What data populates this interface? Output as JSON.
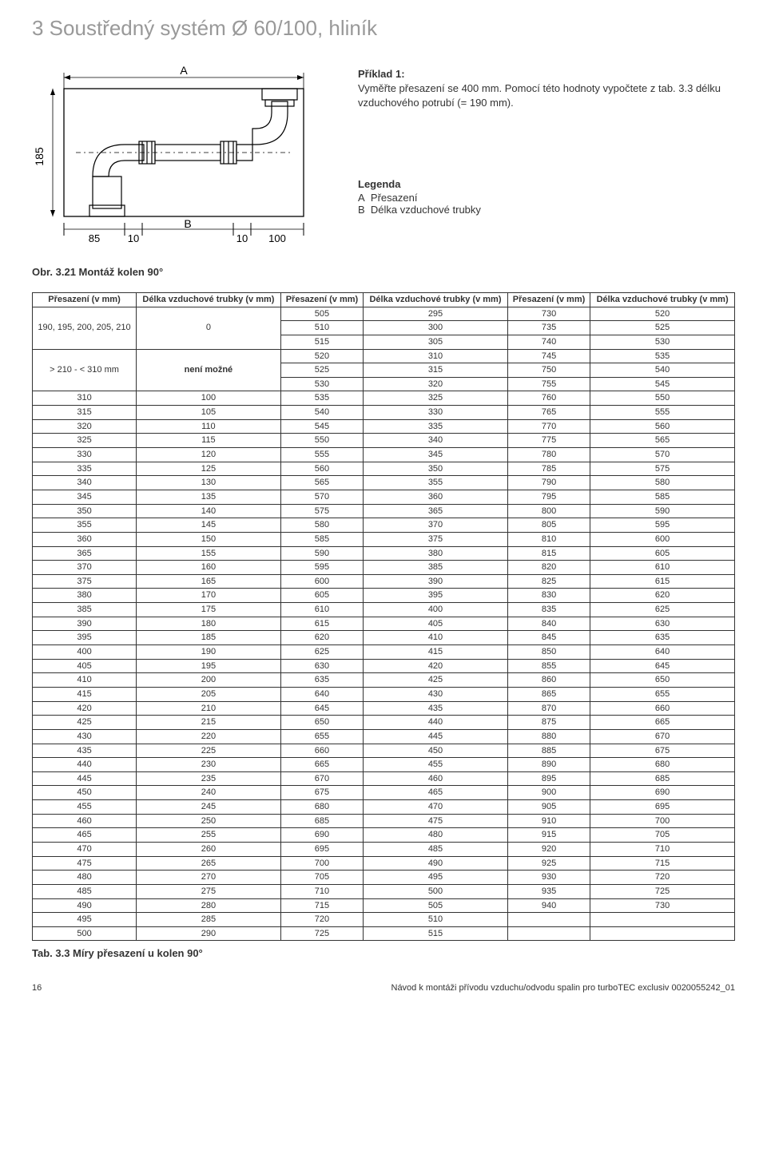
{
  "section_title": "3 Soustředný systém Ø 60/100, hliník",
  "example": {
    "title": "Příklad 1:",
    "text": "Vyměřte přesazení se 400 mm. Pomocí této hodnoty vypočtete z tab. 3.3 délku vzduchového potrubí (= 190 mm)."
  },
  "legend": {
    "title": "Legenda",
    "a_label": "A",
    "a_text": "Přesazení",
    "b_label": "B",
    "b_text": "Délka vzduchové trubky"
  },
  "fig_caption": "Obr. 3.21 Montáž kolen 90°",
  "diagram": {
    "dim_A": "A",
    "dim_B": "B",
    "d85": "85",
    "d100": "100",
    "d10a": "10",
    "d10b": "10",
    "d185": "185"
  },
  "table": {
    "header": {
      "col1": "Přesazení (v mm)",
      "col2": "Délka vzduchové trubky (v mm)",
      "col3": "Přesazení (v mm)",
      "col4": "Délka vzduchové trubky (v mm)",
      "col5": "Přesazení (v mm)",
      "col6": "Délka vzduchové trubky (v mm)"
    },
    "top_block": {
      "left_label_1": "190, 195, 200, 205, 210",
      "left_val_1": "0",
      "left_label_2": "> 210 - < 310 mm",
      "left_val_2": "není možné",
      "rows": [
        [
          "505",
          "295",
          "730",
          "520"
        ],
        [
          "510",
          "300",
          "735",
          "525"
        ],
        [
          "515",
          "305",
          "740",
          "530"
        ],
        [
          "520",
          "310",
          "745",
          "535"
        ],
        [
          "525",
          "315",
          "750",
          "540"
        ],
        [
          "530",
          "320",
          "755",
          "545"
        ]
      ]
    },
    "rows": [
      [
        "310",
        "100",
        "535",
        "325",
        "760",
        "550"
      ],
      [
        "315",
        "105",
        "540",
        "330",
        "765",
        "555"
      ],
      [
        "320",
        "110",
        "545",
        "335",
        "770",
        "560"
      ],
      [
        "325",
        "115",
        "550",
        "340",
        "775",
        "565"
      ],
      [
        "330",
        "120",
        "555",
        "345",
        "780",
        "570"
      ],
      [
        "335",
        "125",
        "560",
        "350",
        "785",
        "575"
      ],
      [
        "340",
        "130",
        "565",
        "355",
        "790",
        "580"
      ],
      [
        "345",
        "135",
        "570",
        "360",
        "795",
        "585"
      ],
      [
        "350",
        "140",
        "575",
        "365",
        "800",
        "590"
      ],
      [
        "355",
        "145",
        "580",
        "370",
        "805",
        "595"
      ],
      [
        "360",
        "150",
        "585",
        "375",
        "810",
        "600"
      ],
      [
        "365",
        "155",
        "590",
        "380",
        "815",
        "605"
      ],
      [
        "370",
        "160",
        "595",
        "385",
        "820",
        "610"
      ],
      [
        "375",
        "165",
        "600",
        "390",
        "825",
        "615"
      ],
      [
        "380",
        "170",
        "605",
        "395",
        "830",
        "620"
      ],
      [
        "385",
        "175",
        "610",
        "400",
        "835",
        "625"
      ],
      [
        "390",
        "180",
        "615",
        "405",
        "840",
        "630"
      ],
      [
        "395",
        "185",
        "620",
        "410",
        "845",
        "635"
      ],
      [
        "400",
        "190",
        "625",
        "415",
        "850",
        "640"
      ],
      [
        "405",
        "195",
        "630",
        "420",
        "855",
        "645"
      ],
      [
        "410",
        "200",
        "635",
        "425",
        "860",
        "650"
      ],
      [
        "415",
        "205",
        "640",
        "430",
        "865",
        "655"
      ],
      [
        "420",
        "210",
        "645",
        "435",
        "870",
        "660"
      ],
      [
        "425",
        "215",
        "650",
        "440",
        "875",
        "665"
      ],
      [
        "430",
        "220",
        "655",
        "445",
        "880",
        "670"
      ],
      [
        "435",
        "225",
        "660",
        "450",
        "885",
        "675"
      ],
      [
        "440",
        "230",
        "665",
        "455",
        "890",
        "680"
      ],
      [
        "445",
        "235",
        "670",
        "460",
        "895",
        "685"
      ],
      [
        "450",
        "240",
        "675",
        "465",
        "900",
        "690"
      ],
      [
        "455",
        "245",
        "680",
        "470",
        "905",
        "695"
      ],
      [
        "460",
        "250",
        "685",
        "475",
        "910",
        "700"
      ],
      [
        "465",
        "255",
        "690",
        "480",
        "915",
        "705"
      ],
      [
        "470",
        "260",
        "695",
        "485",
        "920",
        "710"
      ],
      [
        "475",
        "265",
        "700",
        "490",
        "925",
        "715"
      ],
      [
        "480",
        "270",
        "705",
        "495",
        "930",
        "720"
      ],
      [
        "485",
        "275",
        "710",
        "500",
        "935",
        "725"
      ],
      [
        "490",
        "280",
        "715",
        "505",
        "940",
        "730"
      ],
      [
        "495",
        "285",
        "720",
        "510",
        "",
        ""
      ],
      [
        "500",
        "290",
        "725",
        "515",
        "",
        ""
      ]
    ]
  },
  "tab_caption": "Tab. 3.3 Míry přesazení u kolen 90°",
  "footer": {
    "page": "16",
    "text": "Návod k montáži přívodu vzduchu/odvodu spalin pro turboTEC exclusiv 0020055242_01"
  }
}
